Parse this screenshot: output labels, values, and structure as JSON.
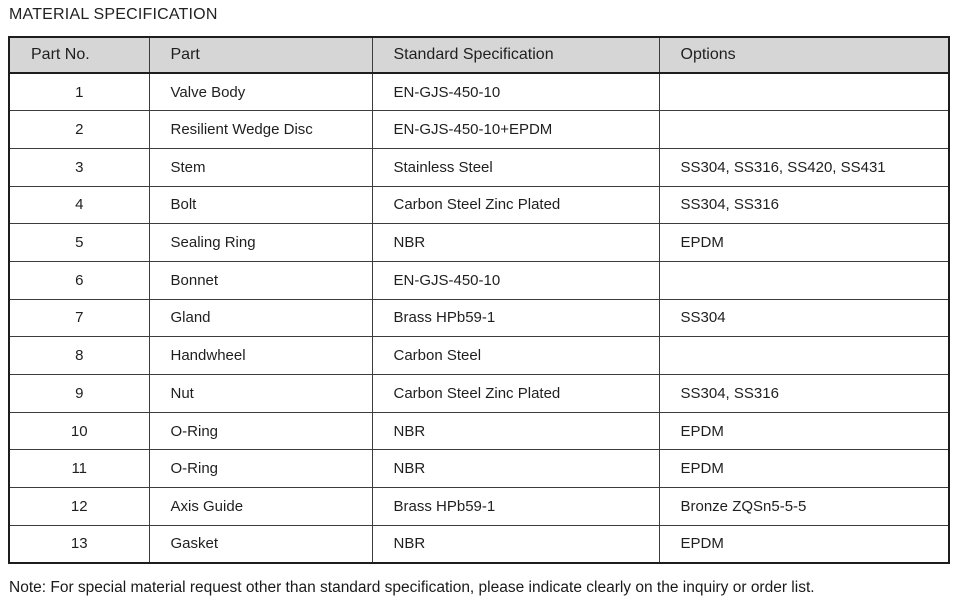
{
  "title": "MATERIAL SPECIFICATION",
  "colors": {
    "header_bg": "#d6d6d6",
    "border_dark": "#1d1d1d",
    "border_inner": "#3c3c3c",
    "text_color": "#1f1f1f",
    "page_bg": "#ffffff"
  },
  "table": {
    "headers": [
      "Part No.",
      "Part",
      "Standard Specification",
      "Options"
    ],
    "rows": [
      {
        "no": "1",
        "part": "Valve Body",
        "spec": "EN-GJS-450-10",
        "options": ""
      },
      {
        "no": "2",
        "part": "Resilient Wedge Disc",
        "spec": "EN-GJS-450-10+EPDM",
        "options": ""
      },
      {
        "no": "3",
        "part": "Stem",
        "spec": "Stainless Steel",
        "options": "SS304, SS316, SS420, SS431"
      },
      {
        "no": "4",
        "part": "Bolt",
        "spec": "Carbon Steel Zinc Plated",
        "options": "SS304, SS316"
      },
      {
        "no": "5",
        "part": "Sealing Ring",
        "spec": "NBR",
        "options": "EPDM"
      },
      {
        "no": "6",
        "part": "Bonnet",
        "spec": "EN-GJS-450-10",
        "options": ""
      },
      {
        "no": "7",
        "part": "Gland",
        "spec": "Brass HPb59-1",
        "options": "SS304"
      },
      {
        "no": "8",
        "part": "Handwheel",
        "spec": "Carbon Steel",
        "options": ""
      },
      {
        "no": "9",
        "part": "Nut",
        "spec": "Carbon Steel Zinc Plated",
        "options": "SS304, SS316"
      },
      {
        "no": "10",
        "part": "O-Ring",
        "spec": "NBR",
        "options": "EPDM"
      },
      {
        "no": "11",
        "part": "O-Ring",
        "spec": "NBR",
        "options": "EPDM"
      },
      {
        "no": "12",
        "part": "Axis Guide",
        "spec": "Brass HPb59-1",
        "options": "Bronze ZQSn5-5-5"
      },
      {
        "no": "13",
        "part": "Gasket",
        "spec": "NBR",
        "options": "EPDM"
      }
    ]
  },
  "note": "Note: For special material request other than standard specification, please indicate clearly on the inquiry or order list."
}
